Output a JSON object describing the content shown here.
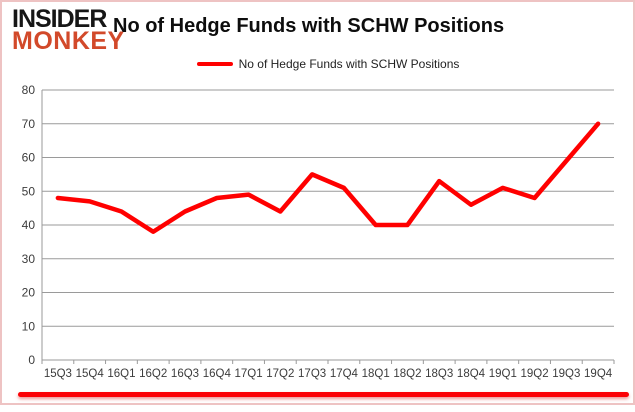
{
  "brand": {
    "line1": "INSIDER",
    "line2": "MONKEY",
    "line1_color": "#161616",
    "line2_color": "#d2492a"
  },
  "header": {
    "title": "No of Hedge Funds with SCHW Positions"
  },
  "legend": {
    "label": "No of Hedge Funds with SCHW Positions",
    "marker_color": "#ff0000"
  },
  "chart_data": {
    "type": "line",
    "title": "No of Hedge Funds with SCHW Positions",
    "categories": [
      "15Q3",
      "15Q4",
      "16Q1",
      "16Q2",
      "16Q3",
      "16Q4",
      "17Q1",
      "17Q2",
      "17Q3",
      "17Q4",
      "18Q1",
      "18Q2",
      "18Q3",
      "18Q4",
      "19Q1",
      "19Q2",
      "19Q3",
      "19Q4"
    ],
    "series": [
      {
        "name": "No of Hedge Funds with SCHW Positions",
        "color": "#ff0000",
        "values": [
          48,
          47,
          44,
          38,
          44,
          48,
          49,
          44,
          55,
          51,
          40,
          40,
          53,
          46,
          51,
          48,
          59,
          70
        ]
      }
    ],
    "xlabel": "",
    "ylabel": "",
    "ylim": [
      0,
      80
    ],
    "ytick_step": 10,
    "grid": "horizontal",
    "legend_position": "top-center"
  }
}
